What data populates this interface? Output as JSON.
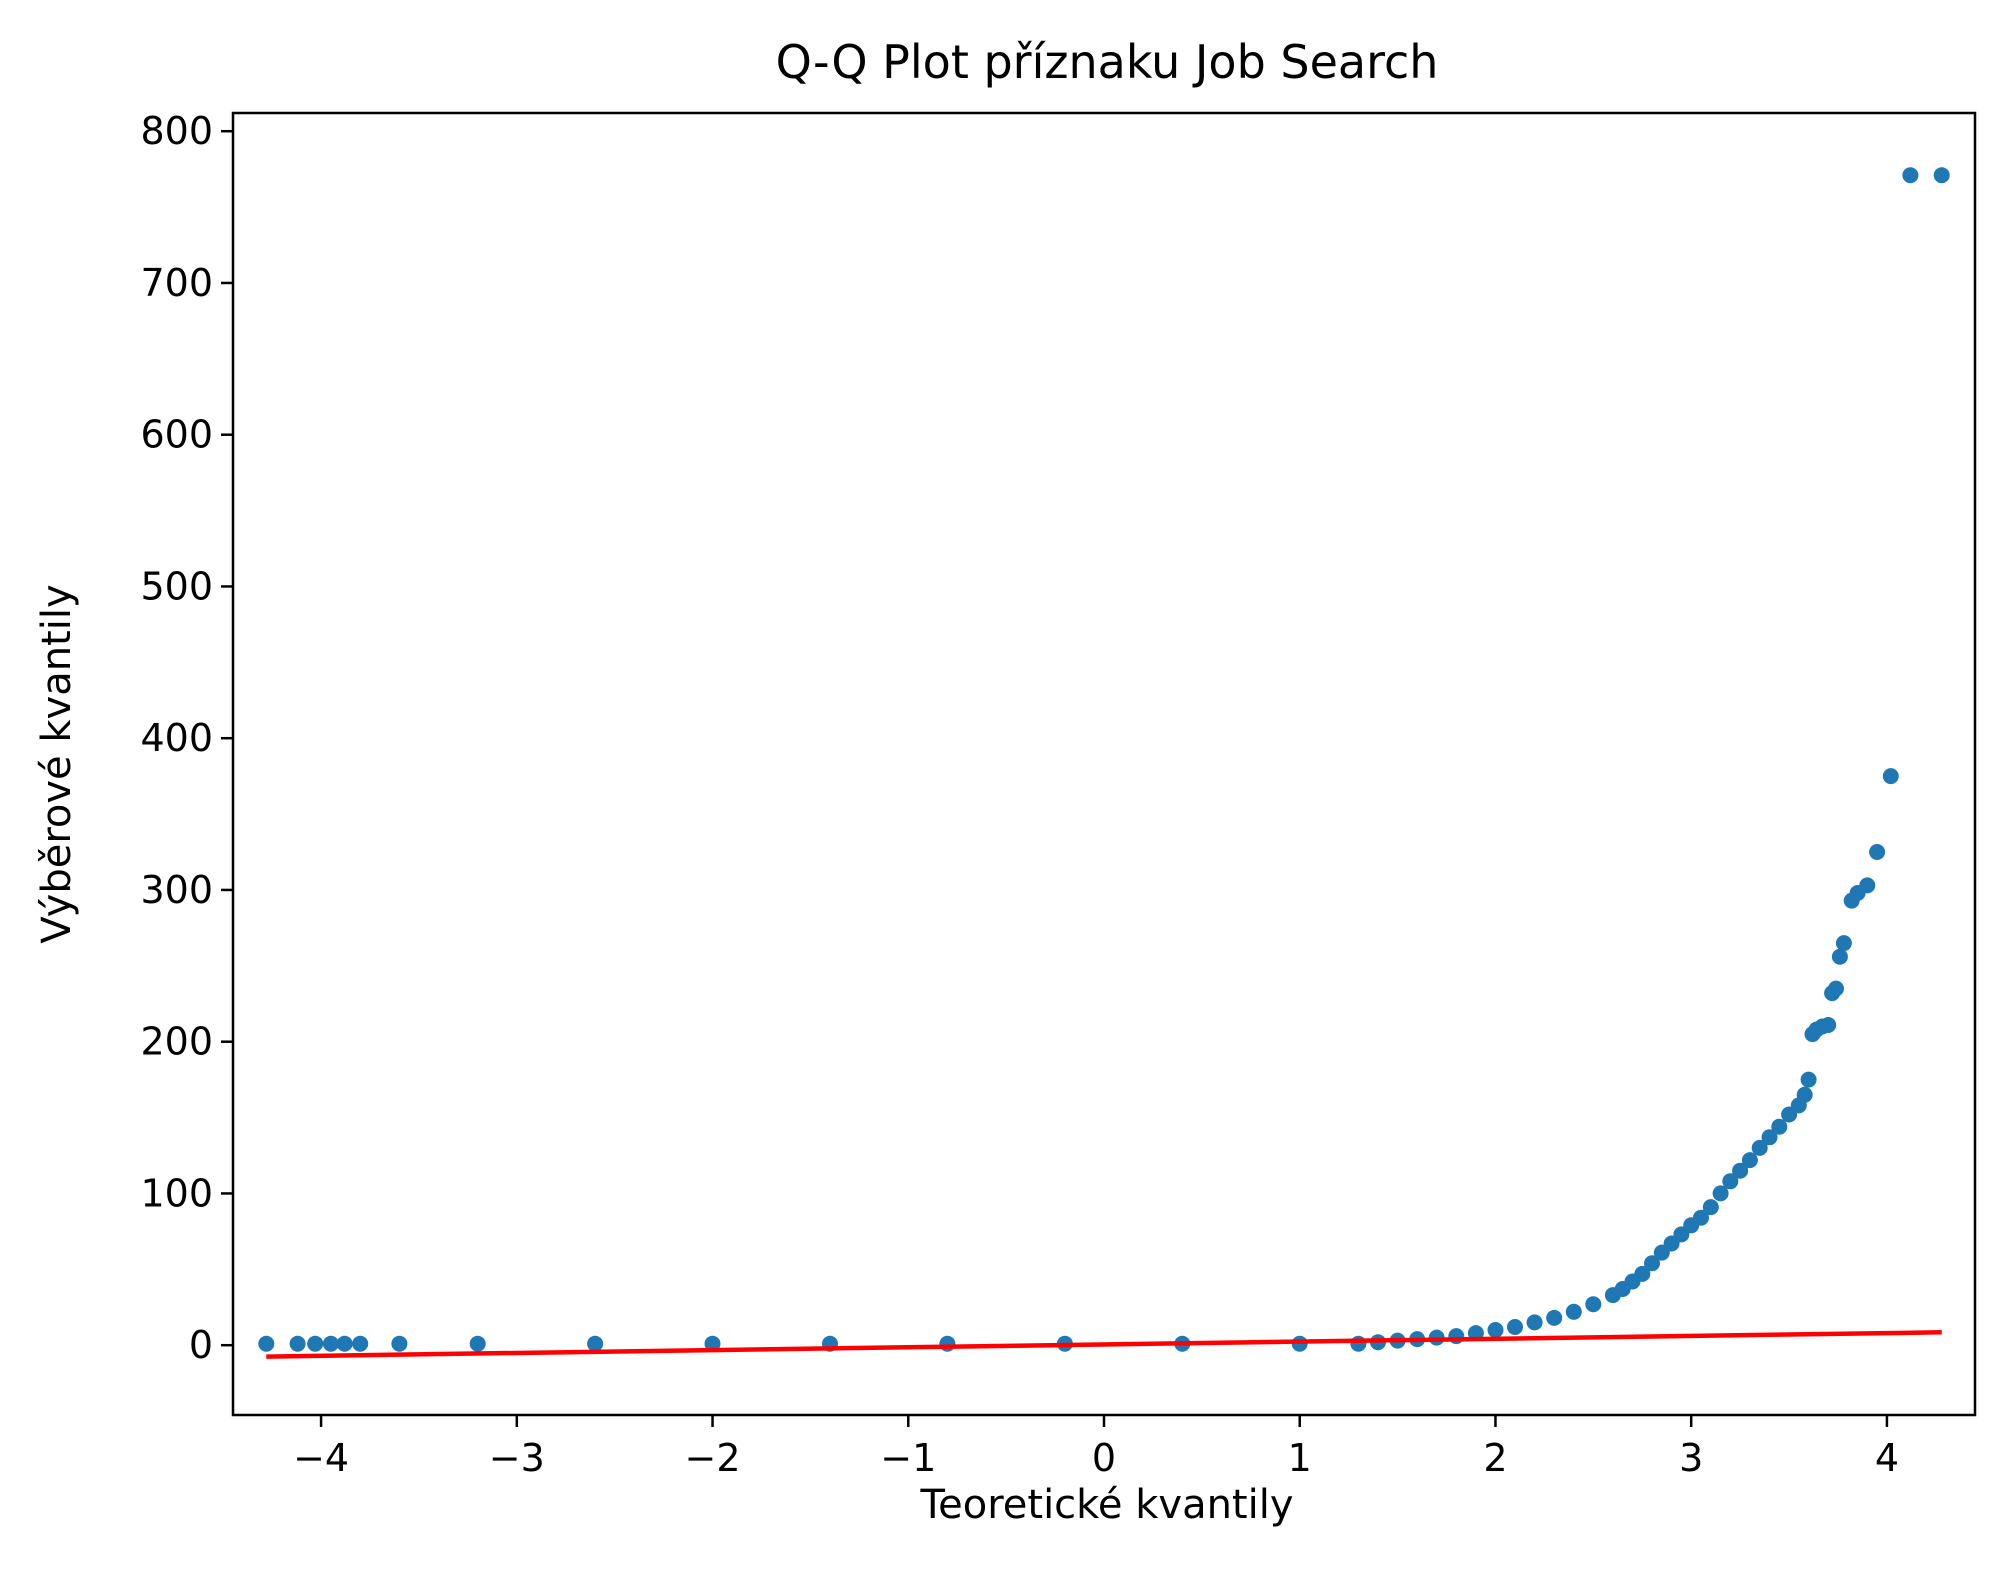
{
  "chart_data": {
    "type": "scatter",
    "title": "Q-Q Plot příznaku Job Search",
    "xlabel": "Teoretické kvantily",
    "ylabel": "Výběrové kvantily",
    "xlim": [
      -4.45,
      4.45
    ],
    "ylim": [
      -46,
      812
    ],
    "x_ticks": [
      -4,
      -3,
      -2,
      -1,
      0,
      1,
      2,
      3,
      4
    ],
    "x_tick_labels": [
      "−4",
      "−3",
      "−2",
      "−1",
      "0",
      "1",
      "2",
      "3",
      "4"
    ],
    "y_ticks": [
      0,
      100,
      200,
      300,
      400,
      500,
      600,
      700,
      800
    ],
    "y_tick_labels": [
      "0",
      "100",
      "200",
      "300",
      "400",
      "500",
      "600",
      "700",
      "800"
    ],
    "grid": false,
    "colors": {
      "points": "#1f77b4",
      "fit_line": "#ff0000"
    },
    "series": [
      {
        "kind": "points",
        "x": [
          -4.28,
          -4.12,
          -4.03,
          -3.95,
          -3.88,
          -3.8,
          -3.6,
          -3.2,
          -2.6,
          -2.0,
          -1.4,
          -0.8,
          -0.2,
          0.4,
          1.0,
          1.3,
          1.4,
          1.5,
          1.6,
          1.7,
          1.8,
          1.9,
          2.0,
          2.1,
          2.2,
          2.3,
          2.4,
          2.5,
          2.6,
          2.65,
          2.7,
          2.75,
          2.8,
          2.85,
          2.9,
          2.95,
          3.0,
          3.05,
          3.1,
          3.15,
          3.2,
          3.25,
          3.3,
          3.35,
          3.4,
          3.45,
          3.5,
          3.55,
          3.58,
          3.6,
          3.62,
          3.64,
          3.67,
          3.7,
          3.72,
          3.74,
          3.76,
          3.78,
          3.82,
          3.85,
          3.9,
          3.95,
          4.02,
          4.12,
          4.28
        ],
        "y": [
          1,
          1,
          1,
          1,
          1,
          1,
          1,
          1,
          1,
          1,
          1,
          1,
          1,
          1,
          1,
          1,
          2,
          3,
          4,
          5,
          6,
          8,
          10,
          12,
          15,
          18,
          22,
          27,
          33,
          37,
          42,
          47,
          54,
          61,
          67,
          73,
          79,
          84,
          91,
          100,
          108,
          115,
          122,
          130,
          137,
          144,
          152,
          158,
          165,
          175,
          205,
          208,
          210,
          211,
          232,
          235,
          256,
          265,
          293,
          298,
          303,
          325,
          375,
          771,
          771
        ]
      },
      {
        "kind": "fit_line",
        "x": [
          -4.28,
          4.28
        ],
        "y": [
          -7.5,
          8.5
        ]
      }
    ]
  }
}
